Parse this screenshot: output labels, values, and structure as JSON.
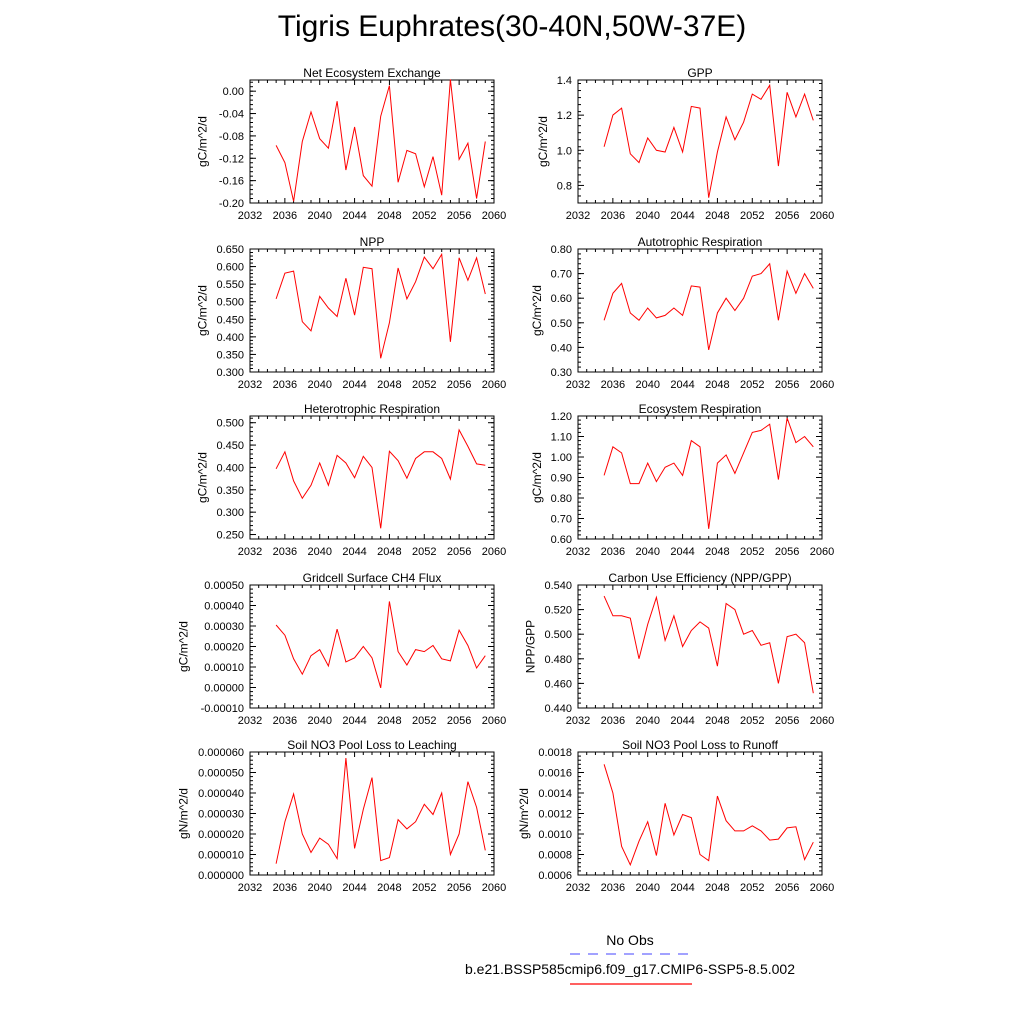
{
  "title": "Tigris Euphrates(30-40N,50W-37E)",
  "legend": {
    "obs_label": "No Obs",
    "case_label": "b.e21.BSSP585cmip6.f09_g17.CMIP6-SSP5-8.5.002",
    "obs_color": "#6a6aff",
    "case_color": "#ff0000"
  },
  "chart_data": [
    {
      "type": "line",
      "title": "Net Ecosystem Exchange",
      "ylabel": "gC/m^2/d",
      "xlim": [
        2032,
        2060
      ],
      "ylim": [
        -0.2,
        0.02
      ],
      "xticks": [
        "2032",
        "2036",
        "2040",
        "2044",
        "2048",
        "2052",
        "2056",
        "2060"
      ],
      "yticks": [
        "0.00",
        "-0.04",
        "-0.08",
        "-0.12",
        "-0.16",
        "-0.20"
      ],
      "series": [
        {
          "color": "#ff0000",
          "x": [
            2035,
            2036,
            2037,
            2038,
            2039,
            2040,
            2041,
            2042,
            2043,
            2044,
            2045,
            2046,
            2047,
            2048,
            2049,
            2050,
            2051,
            2052,
            2053,
            2054,
            2055,
            2056,
            2057,
            2058,
            2059
          ],
          "values": [
            -0.097,
            -0.128,
            -0.197,
            -0.09,
            -0.037,
            -0.085,
            -0.102,
            -0.018,
            -0.141,
            -0.064,
            -0.151,
            -0.17,
            -0.045,
            0.01,
            -0.163,
            -0.106,
            -0.112,
            -0.171,
            -0.117,
            -0.186,
            0.021,
            -0.122,
            -0.093,
            -0.192,
            -0.09
          ]
        }
      ]
    },
    {
      "type": "line",
      "title": "GPP",
      "ylabel": "gC/m^2/d",
      "xlim": [
        2032,
        2060
      ],
      "ylim": [
        0.7,
        1.4
      ],
      "xticks": [
        "2032",
        "2036",
        "2040",
        "2044",
        "2048",
        "2052",
        "2056",
        "2060"
      ],
      "yticks": [
        "1.4",
        "1.2",
        "1.0",
        "0.8"
      ],
      "series": [
        {
          "color": "#ff0000",
          "x": [
            2035,
            2036,
            2037,
            2038,
            2039,
            2040,
            2041,
            2042,
            2043,
            2044,
            2045,
            2046,
            2047,
            2048,
            2049,
            2050,
            2051,
            2052,
            2053,
            2054,
            2055,
            2056,
            2057,
            2058,
            2059
          ],
          "values": [
            1.02,
            1.2,
            1.24,
            0.98,
            0.93,
            1.07,
            1.0,
            0.99,
            1.13,
            0.99,
            1.25,
            1.24,
            0.73,
            0.99,
            1.19,
            1.06,
            1.16,
            1.32,
            1.29,
            1.37,
            0.91,
            1.33,
            1.19,
            1.32,
            1.17
          ]
        }
      ]
    },
    {
      "type": "line",
      "title": "NPP",
      "ylabel": "gC/m^2/d",
      "xlim": [
        2032,
        2060
      ],
      "ylim": [
        0.3,
        0.65
      ],
      "xticks": [
        "2032",
        "2036",
        "2040",
        "2044",
        "2048",
        "2052",
        "2056",
        "2060"
      ],
      "yticks": [
        "0.650",
        "0.600",
        "0.550",
        "0.500",
        "0.450",
        "0.400",
        "0.350",
        "0.300"
      ],
      "series": [
        {
          "color": "#ff0000",
          "x": [
            2035,
            2036,
            2037,
            2038,
            2039,
            2040,
            2041,
            2042,
            2043,
            2044,
            2045,
            2046,
            2047,
            2048,
            2049,
            2050,
            2051,
            2052,
            2053,
            2054,
            2055,
            2056,
            2057,
            2058,
            2059
          ],
          "values": [
            0.508,
            0.581,
            0.587,
            0.443,
            0.417,
            0.515,
            0.482,
            0.458,
            0.567,
            0.462,
            0.598,
            0.594,
            0.339,
            0.44,
            0.596,
            0.508,
            0.557,
            0.627,
            0.594,
            0.635,
            0.386,
            0.625,
            0.561,
            0.625,
            0.522
          ]
        }
      ]
    },
    {
      "type": "line",
      "title": "Autotrophic Respiration",
      "ylabel": "gC/m^2/d",
      "xlim": [
        2032,
        2060
      ],
      "ylim": [
        0.3,
        0.8
      ],
      "xticks": [
        "2032",
        "2036",
        "2040",
        "2044",
        "2048",
        "2052",
        "2056",
        "2060"
      ],
      "yticks": [
        "0.80",
        "0.70",
        "0.60",
        "0.50",
        "0.40",
        "0.30"
      ],
      "series": [
        {
          "color": "#ff0000",
          "x": [
            2035,
            2036,
            2037,
            2038,
            2039,
            2040,
            2041,
            2042,
            2043,
            2044,
            2045,
            2046,
            2047,
            2048,
            2049,
            2050,
            2051,
            2052,
            2053,
            2054,
            2055,
            2056,
            2057,
            2058,
            2059
          ],
          "values": [
            0.51,
            0.62,
            0.66,
            0.54,
            0.51,
            0.56,
            0.52,
            0.53,
            0.56,
            0.53,
            0.65,
            0.645,
            0.39,
            0.54,
            0.6,
            0.55,
            0.6,
            0.69,
            0.7,
            0.74,
            0.51,
            0.71,
            0.62,
            0.7,
            0.64
          ]
        }
      ]
    },
    {
      "type": "line",
      "title": "Heterotrophic Respiration",
      "ylabel": "gC/m^2/d",
      "xlim": [
        2032,
        2060
      ],
      "ylim": [
        0.24,
        0.515
      ],
      "xticks": [
        "2032",
        "2036",
        "2040",
        "2044",
        "2048",
        "2052",
        "2056",
        "2060"
      ],
      "yticks": [
        "0.500",
        "0.450",
        "0.400",
        "0.350",
        "0.300",
        "0.250"
      ],
      "series": [
        {
          "color": "#ff0000",
          "x": [
            2035,
            2036,
            2037,
            2038,
            2039,
            2040,
            2041,
            2042,
            2043,
            2044,
            2045,
            2046,
            2047,
            2048,
            2049,
            2050,
            2051,
            2052,
            2053,
            2054,
            2055,
            2056,
            2057,
            2058,
            2059
          ],
          "values": [
            0.397,
            0.435,
            0.37,
            0.331,
            0.36,
            0.41,
            0.36,
            0.427,
            0.41,
            0.377,
            0.425,
            0.4,
            0.264,
            0.436,
            0.415,
            0.376,
            0.42,
            0.435,
            0.435,
            0.42,
            0.374,
            0.484,
            0.447,
            0.408,
            0.405
          ]
        }
      ]
    },
    {
      "type": "line",
      "title": "Ecosystem Respiration",
      "ylabel": "gC/m^2/d",
      "xlim": [
        2032,
        2060
      ],
      "ylim": [
        0.6,
        1.2
      ],
      "xticks": [
        "2032",
        "2036",
        "2040",
        "2044",
        "2048",
        "2052",
        "2056",
        "2060"
      ],
      "yticks": [
        "1.20",
        "1.10",
        "1.00",
        "0.90",
        "0.80",
        "0.70",
        "0.60"
      ],
      "series": [
        {
          "color": "#ff0000",
          "x": [
            2035,
            2036,
            2037,
            2038,
            2039,
            2040,
            2041,
            2042,
            2043,
            2044,
            2045,
            2046,
            2047,
            2048,
            2049,
            2050,
            2051,
            2052,
            2053,
            2054,
            2055,
            2056,
            2057,
            2058,
            2059
          ],
          "values": [
            0.91,
            1.05,
            1.02,
            0.87,
            0.87,
            0.97,
            0.88,
            0.95,
            0.97,
            0.91,
            1.08,
            1.05,
            0.65,
            0.97,
            1.01,
            0.92,
            1.02,
            1.12,
            1.13,
            1.16,
            0.89,
            1.19,
            1.07,
            1.1,
            1.05
          ]
        }
      ]
    },
    {
      "type": "line",
      "title": "Gridcell Surface CH4 Flux",
      "ylabel": "gC/m^2/d",
      "xlim": [
        2032,
        2060
      ],
      "ylim": [
        -0.0001,
        0.0005
      ],
      "xticks": [
        "2032",
        "2036",
        "2040",
        "2044",
        "2048",
        "2052",
        "2056",
        "2060"
      ],
      "yticks": [
        "0.00050",
        "0.00040",
        "0.00030",
        "0.00020",
        "0.00010",
        "0.00000",
        "-0.00010"
      ],
      "series": [
        {
          "color": "#ff0000",
          "x": [
            2035,
            2036,
            2037,
            2038,
            2039,
            2040,
            2041,
            2042,
            2043,
            2044,
            2045,
            2046,
            2047,
            2048,
            2049,
            2050,
            2051,
            2052,
            2053,
            2054,
            2055,
            2056,
            2057,
            2058,
            2059
          ],
          "values": [
            0.000305,
            0.000255,
            0.00014,
            6.5e-05,
            0.000155,
            0.000185,
            0.000105,
            0.000285,
            0.000125,
            0.000145,
            0.0002,
            0.000145,
            -2e-06,
            0.00042,
            0.000175,
            0.00011,
            0.000185,
            0.000175,
            0.000205,
            0.00014,
            0.00013,
            0.00028,
            0.000205,
            9.5e-05,
            0.000155
          ]
        }
      ]
    },
    {
      "type": "line",
      "title": "Carbon Use Efficiency (NPP/GPP)",
      "ylabel": "NPP/GPP",
      "xlim": [
        2032,
        2060
      ],
      "ylim": [
        0.44,
        0.54
      ],
      "xticks": [
        "2032",
        "2036",
        "2040",
        "2044",
        "2048",
        "2052",
        "2056",
        "2060"
      ],
      "yticks": [
        "0.540",
        "0.520",
        "0.500",
        "0.480",
        "0.460",
        "0.440"
      ],
      "series": [
        {
          "color": "#ff0000",
          "x": [
            2035,
            2036,
            2037,
            2038,
            2039,
            2040,
            2041,
            2042,
            2043,
            2044,
            2045,
            2046,
            2047,
            2048,
            2049,
            2050,
            2051,
            2052,
            2053,
            2054,
            2055,
            2056,
            2057,
            2058,
            2059
          ],
          "values": [
            0.531,
            0.515,
            0.515,
            0.513,
            0.48,
            0.508,
            0.53,
            0.495,
            0.515,
            0.49,
            0.503,
            0.51,
            0.505,
            0.474,
            0.525,
            0.52,
            0.5,
            0.503,
            0.491,
            0.493,
            0.46,
            0.498,
            0.5,
            0.493,
            0.452
          ]
        }
      ]
    },
    {
      "type": "line",
      "title": "Soil NO3 Pool Loss to Leaching",
      "ylabel": "gN/m^2/d",
      "xlim": [
        2032,
        2060
      ],
      "ylim": [
        0.0,
        6e-05
      ],
      "xticks": [
        "2032",
        "2036",
        "2040",
        "2044",
        "2048",
        "2052",
        "2056",
        "2060"
      ],
      "yticks": [
        "0.000060",
        "0.000050",
        "0.000040",
        "0.000030",
        "0.000020",
        "0.000010",
        "0.000000"
      ],
      "series": [
        {
          "color": "#ff0000",
          "x": [
            2035,
            2036,
            2037,
            2038,
            2039,
            2040,
            2041,
            2042,
            2043,
            2044,
            2045,
            2046,
            2047,
            2048,
            2049,
            2050,
            2051,
            2052,
            2053,
            2054,
            2055,
            2056,
            2057,
            2058,
            2059
          ],
          "values": [
            5.5e-06,
            2.6e-05,
            3.95e-05,
            2e-05,
            1.1e-05,
            1.8e-05,
            1.5e-05,
            8e-06,
            5.7e-05,
            1.3e-05,
            3.2e-05,
            4.75e-05,
            7e-06,
            8.5e-06,
            2.7e-05,
            2.25e-05,
            2.6e-05,
            3.45e-05,
            2.95e-05,
            4e-05,
            1e-05,
            2e-05,
            4.55e-05,
            3.3e-05,
            1.2e-05
          ]
        }
      ]
    },
    {
      "type": "line",
      "title": "Soil NO3 Pool Loss to Runoff",
      "ylabel": "gN/m^2/d",
      "xlim": [
        2032,
        2060
      ],
      "ylim": [
        0.0006,
        0.0018
      ],
      "xticks": [
        "2032",
        "2036",
        "2040",
        "2044",
        "2048",
        "2052",
        "2056",
        "2060"
      ],
      "yticks": [
        "0.0018",
        "0.0016",
        "0.0014",
        "0.0012",
        "0.0010",
        "0.0008",
        "0.0006"
      ],
      "series": [
        {
          "color": "#ff0000",
          "x": [
            2035,
            2036,
            2037,
            2038,
            2039,
            2040,
            2041,
            2042,
            2043,
            2044,
            2045,
            2046,
            2047,
            2048,
            2049,
            2050,
            2051,
            2052,
            2053,
            2054,
            2055,
            2056,
            2057,
            2058,
            2059
          ],
          "values": [
            0.00168,
            0.0014,
            0.00088,
            0.0007,
            0.00093,
            0.00112,
            0.00079,
            0.0013,
            0.00099,
            0.00119,
            0.00116,
            0.0008,
            0.00074,
            0.00137,
            0.00113,
            0.00103,
            0.00103,
            0.00108,
            0.00103,
            0.00094,
            0.00095,
            0.00106,
            0.00107,
            0.00075,
            0.00092
          ]
        }
      ]
    }
  ]
}
